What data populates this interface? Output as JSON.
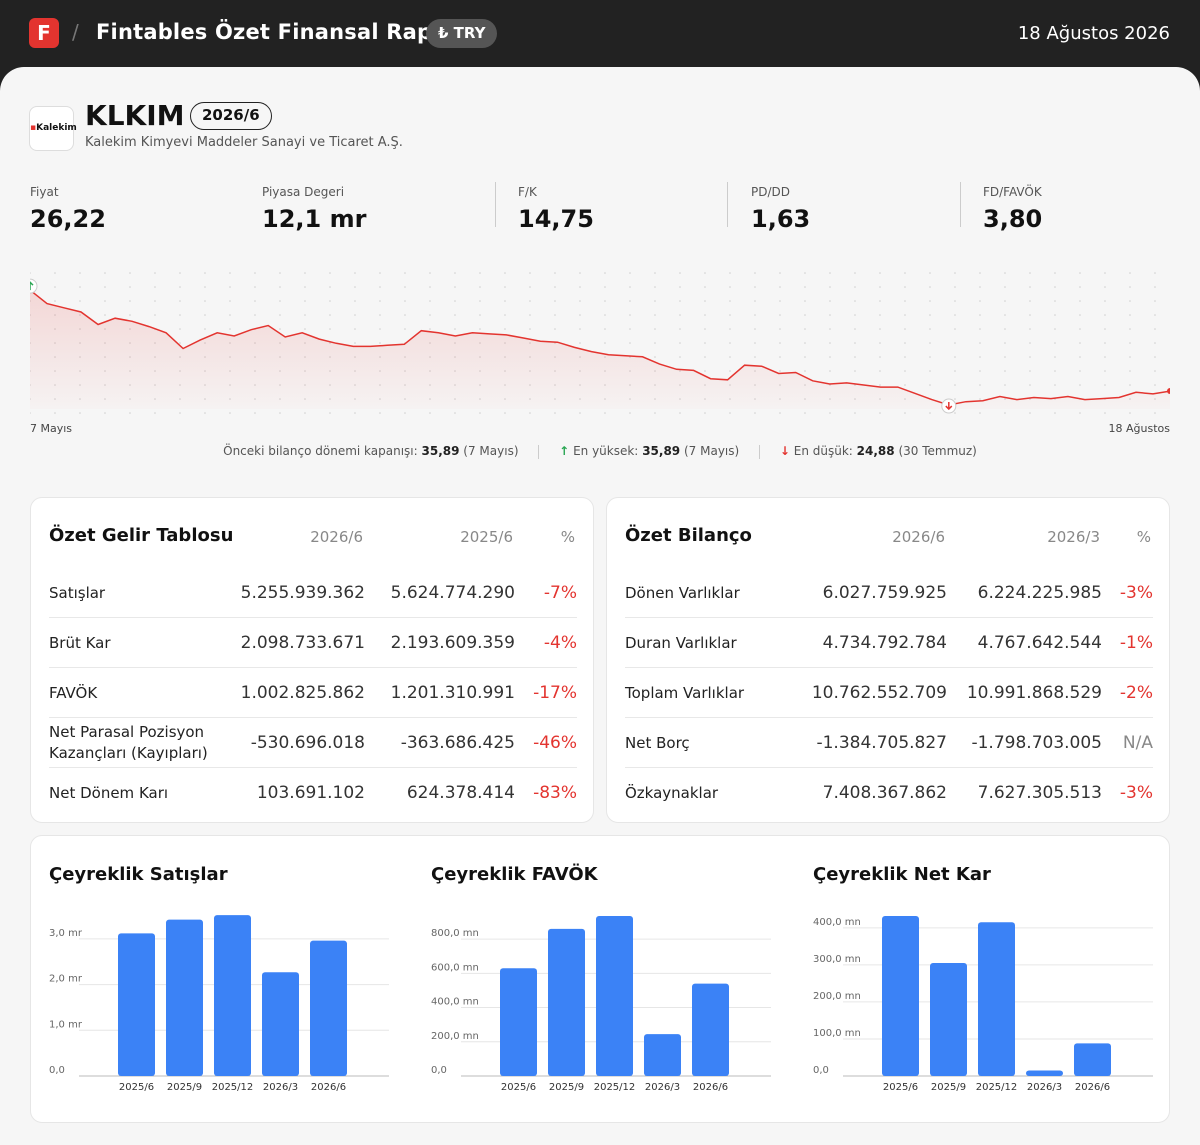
{
  "header": {
    "logo_letter": "F",
    "title": "Fintables Özet Finansal Rapor",
    "currency": "₺ TRY",
    "date": "18 Ağustos 2026"
  },
  "company": {
    "logo_text": "Kalekim",
    "ticker": "KLKIM",
    "period": "2026/6",
    "name": "Kalekim Kimyevi Maddeler Sanayi ve Ticaret A.Ş."
  },
  "metrics": [
    {
      "label": "Fiyat",
      "value": "26,22"
    },
    {
      "label": "Piyasa Degeri",
      "value": "12,1 mr"
    },
    {
      "label": "F/K",
      "value": "14,75"
    },
    {
      "label": "PD/DD",
      "value": "1,63"
    },
    {
      "label": "FD/FAVÖK",
      "value": "3,80"
    }
  ],
  "price_chart": {
    "start_label": "7 Mayıs",
    "end_label": "18 Ağustos",
    "line_color": "#e3342f",
    "prices": [
      35.89,
      34.6,
      34.2,
      33.8,
      32.6,
      33.2,
      32.9,
      32.4,
      31.8,
      30.3,
      31.1,
      31.8,
      31.5,
      32.1,
      32.5,
      31.4,
      31.8,
      31.2,
      30.8,
      30.5,
      30.5,
      30.6,
      30.7,
      32.0,
      31.8,
      31.5,
      31.8,
      31.7,
      31.6,
      31.3,
      31.0,
      30.9,
      30.4,
      30.0,
      29.7,
      29.6,
      29.5,
      28.8,
      28.3,
      28.2,
      27.4,
      27.3,
      28.7,
      28.6,
      27.9,
      28.0,
      27.2,
      26.9,
      27.0,
      26.8,
      26.6,
      26.6,
      26.0,
      25.4,
      24.88,
      25.2,
      25.3,
      25.7,
      25.4,
      25.6,
      25.5,
      25.7,
      25.4,
      25.5,
      25.6,
      26.1,
      25.95,
      26.22
    ],
    "legend": {
      "prev_label": "Önceki bilanço dönemi kapanışı:",
      "prev_value": "35,89",
      "prev_date": "(7 Mayıs)",
      "high_label": "En yüksek:",
      "high_value": "35,89",
      "high_date": "(7 Mayıs)",
      "low_label": "En düşük:",
      "low_value": "24,88",
      "low_date": "(30 Temmuz)"
    }
  },
  "income_statement": {
    "title": "Özet Gelir Tablosu",
    "col1": "2026/6",
    "col2": "2025/6",
    "col3": "%",
    "rows": [
      {
        "name": "Satışlar",
        "v1": "5.255.939.362",
        "v2": "5.624.774.290",
        "pct": "-7%"
      },
      {
        "name": "Brüt Kar",
        "v1": "2.098.733.671",
        "v2": "2.193.609.359",
        "pct": "-4%"
      },
      {
        "name": "FAVÖK",
        "v1": "1.002.825.862",
        "v2": "1.201.310.991",
        "pct": "-17%"
      },
      {
        "name": "Net Parasal Pozisyon Kazançları (Kayıpları)",
        "v1": "-530.696.018",
        "v2": "-363.686.425",
        "pct": "-46%"
      },
      {
        "name": "Net Dönem Karı",
        "v1": "103.691.102",
        "v2": "624.378.414",
        "pct": "-83%"
      }
    ]
  },
  "balance_sheet": {
    "title": "Özet Bilanço",
    "col1": "2026/6",
    "col2": "2026/3",
    "col3": "%",
    "rows": [
      {
        "name": "Dönen Varlıklar",
        "v1": "6.027.759.925",
        "v2": "6.224.225.985",
        "pct": "-3%"
      },
      {
        "name": "Duran Varlıklar",
        "v1": "4.734.792.784",
        "v2": "4.767.642.544",
        "pct": "-1%"
      },
      {
        "name": "Toplam Varlıklar",
        "v1": "10.762.552.709",
        "v2": "10.991.868.529",
        "pct": "-2%"
      },
      {
        "name": "Net Borç",
        "v1": "-1.384.705.827",
        "v2": "-1.798.703.005",
        "pct": "N/A"
      },
      {
        "name": "Özkaynaklar",
        "v1": "7.408.367.862",
        "v2": "7.627.305.513",
        "pct": "-3%"
      }
    ]
  },
  "chart_data": [
    {
      "type": "bar",
      "title": "Çeyreklik Satışlar",
      "categories": [
        "2025/6",
        "2025/9",
        "2025/12",
        "2026/3",
        "2026/6"
      ],
      "values": [
        3.12,
        3.42,
        3.52,
        2.27,
        2.96
      ],
      "unit": "mr",
      "ylim": [
        0,
        3.5
      ],
      "yticks": [
        "0,0",
        "1,0 mr",
        "2,0 mr",
        "3,0 mr"
      ],
      "ytick_values": [
        0,
        1,
        2,
        3
      ],
      "bar_color": "#3b82f6"
    },
    {
      "type": "bar",
      "title": "Çeyreklik FAVÖK",
      "categories": [
        "2025/6",
        "2025/9",
        "2025/12",
        "2026/3",
        "2026/6"
      ],
      "values": [
        630,
        860,
        935,
        245,
        540
      ],
      "unit": "mn",
      "ylim": [
        0,
        935
      ],
      "yticks": [
        "0,0",
        "200,0 mn",
        "400,0 mn",
        "600,0 mn",
        "800,0 mn"
      ],
      "ytick_values": [
        0,
        200,
        400,
        600,
        800
      ],
      "bar_color": "#3b82f6"
    },
    {
      "type": "bar",
      "title": "Çeyreklik Net Kar",
      "categories": [
        "2025/6",
        "2025/9",
        "2025/12",
        "2026/3",
        "2026/6"
      ],
      "values": [
        432,
        305,
        415,
        15,
        88
      ],
      "unit": "mn",
      "ylim": [
        0,
        432
      ],
      "yticks": [
        "0,0",
        "100,0 mn",
        "200,0 mn",
        "300,0 mn",
        "400,0 mn"
      ],
      "ytick_values": [
        0,
        100,
        200,
        300,
        400
      ],
      "bar_color": "#3b82f6"
    }
  ]
}
